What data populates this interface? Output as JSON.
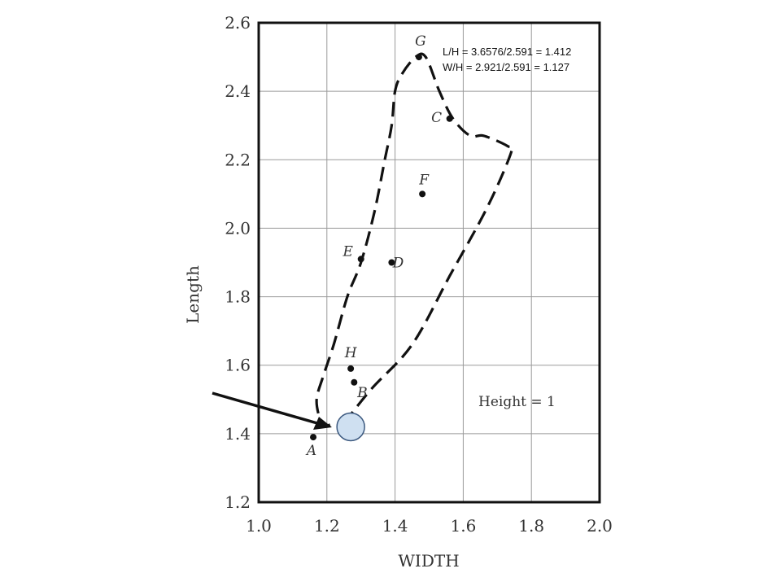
{
  "chart_data": {
    "type": "scatter",
    "xlabel": "WIDTH",
    "ylabel": "Length",
    "xlim": [
      1.0,
      2.0
    ],
    "ylim": [
      1.2,
      2.6
    ],
    "xticks": [
      "1.0",
      "1.2",
      "1.4",
      "1.6",
      "1.8",
      "2.0"
    ],
    "yticks": [
      "1.2",
      "1.4",
      "1.6",
      "1.8",
      "2.0",
      "2.2",
      "2.4",
      "2.6"
    ],
    "x_tick_values": [
      1.0,
      1.2,
      1.4,
      1.6,
      1.8,
      2.0
    ],
    "y_tick_values": [
      1.2,
      1.4,
      1.6,
      1.8,
      2.0,
      2.2,
      2.4,
      2.6
    ],
    "grid": true,
    "points": [
      {
        "label": "A",
        "x": 1.16,
        "y": 1.39
      },
      {
        "label": "B",
        "x": 1.28,
        "y": 1.55
      },
      {
        "label": "H",
        "x": 1.27,
        "y": 1.59
      },
      {
        "label": "E",
        "x": 1.3,
        "y": 1.91
      },
      {
        "label": "D",
        "x": 1.39,
        "y": 1.9
      },
      {
        "label": "F",
        "x": 1.48,
        "y": 2.1
      },
      {
        "label": "C",
        "x": 1.56,
        "y": 2.32
      },
      {
        "label": "G",
        "x": 1.47,
        "y": 2.5
      }
    ],
    "boundary": [
      [
        1.25,
        1.43
      ],
      [
        1.33,
        1.53
      ],
      [
        1.45,
        1.66
      ],
      [
        1.56,
        1.86
      ],
      [
        1.67,
        2.06
      ],
      [
        1.74,
        2.22
      ],
      [
        1.73,
        2.24
      ],
      [
        1.66,
        2.27
      ],
      [
        1.62,
        2.27
      ],
      [
        1.57,
        2.32
      ],
      [
        1.53,
        2.4
      ],
      [
        1.49,
        2.5
      ],
      [
        1.46,
        2.5
      ],
      [
        1.42,
        2.45
      ],
      [
        1.4,
        2.4
      ],
      [
        1.39,
        2.3
      ],
      [
        1.37,
        2.2
      ],
      [
        1.34,
        2.05
      ],
      [
        1.3,
        1.9
      ],
      [
        1.26,
        1.8
      ],
      [
        1.22,
        1.66
      ],
      [
        1.19,
        1.57
      ],
      [
        1.17,
        1.5
      ],
      [
        1.18,
        1.44
      ],
      [
        1.19,
        1.42
      ],
      [
        1.22,
        1.43
      ],
      [
        1.25,
        1.43
      ]
    ],
    "highlight": {
      "x": 1.27,
      "y": 1.42,
      "color": "#cfe0f1",
      "stroke": "#3d5a80"
    },
    "annotations": {
      "lh": "L/H = 3.6576/2.591 = 1.412",
      "wh": "W/H = 2.921/2.591 = 1.127",
      "height": "Height = 1"
    }
  }
}
